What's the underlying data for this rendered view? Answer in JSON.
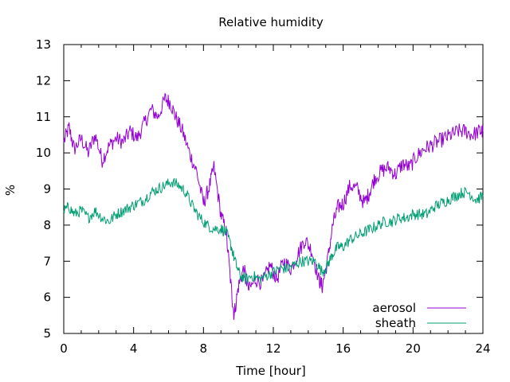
{
  "chart_data": {
    "type": "line",
    "title": "Relative humidity",
    "xlabel": "Time [hour]",
    "ylabel": "%",
    "xlim": [
      0,
      24
    ],
    "ylim": [
      5,
      13
    ],
    "xticks": [
      "0",
      "4",
      "8",
      "12",
      "16",
      "20",
      "24"
    ],
    "yticks": [
      "5",
      "6",
      "7",
      "8",
      "9",
      "10",
      "11",
      "12",
      "13"
    ],
    "grid": false,
    "legend_position": "bottom-right",
    "series": [
      {
        "name": "aerosol",
        "color": "#9400d3",
        "points": [
          [
            0,
            10.3
          ],
          [
            0.3,
            10.7
          ],
          [
            0.6,
            10.1
          ],
          [
            1,
            10.4
          ],
          [
            1.4,
            10.0
          ],
          [
            1.8,
            10.5
          ],
          [
            2.2,
            9.8
          ],
          [
            2.6,
            10.2
          ],
          [
            3,
            10.4
          ],
          [
            3.4,
            10.3
          ],
          [
            3.8,
            10.6
          ],
          [
            4.2,
            10.4
          ],
          [
            4.6,
            10.8
          ],
          [
            5,
            11.2
          ],
          [
            5.4,
            11.0
          ],
          [
            5.8,
            11.5
          ],
          [
            6.1,
            11.4
          ],
          [
            6.4,
            11.0
          ],
          [
            6.8,
            10.6
          ],
          [
            7.2,
            10.0
          ],
          [
            7.6,
            9.5
          ],
          [
            8,
            8.6
          ],
          [
            8.3,
            9.0
          ],
          [
            8.6,
            9.6
          ],
          [
            9,
            8.3
          ],
          [
            9.3,
            7.8
          ],
          [
            9.6,
            6.2
          ],
          [
            9.75,
            5.5
          ],
          [
            10,
            6.3
          ],
          [
            10.3,
            6.8
          ],
          [
            10.6,
            6.2
          ],
          [
            11,
            6.5
          ],
          [
            11.4,
            6.4
          ],
          [
            11.8,
            6.9
          ],
          [
            12.2,
            6.5
          ],
          [
            12.6,
            7.0
          ],
          [
            13,
            6.8
          ],
          [
            13.4,
            7.2
          ],
          [
            13.8,
            7.6
          ],
          [
            14.2,
            7.3
          ],
          [
            14.6,
            6.5
          ],
          [
            14.8,
            6.3
          ],
          [
            15.1,
            7.0
          ],
          [
            15.4,
            8.0
          ],
          [
            15.7,
            8.5
          ],
          [
            16,
            8.6
          ],
          [
            16.4,
            9.1
          ],
          [
            16.8,
            9.0
          ],
          [
            17.2,
            8.6
          ],
          [
            17.5,
            8.9
          ],
          [
            17.8,
            9.3
          ],
          [
            18.2,
            9.5
          ],
          [
            18.6,
            9.6
          ],
          [
            19,
            9.4
          ],
          [
            19.4,
            9.7
          ],
          [
            19.8,
            9.6
          ],
          [
            20.2,
            9.9
          ],
          [
            20.6,
            10.1
          ],
          [
            21,
            10.2
          ],
          [
            21.4,
            10.3
          ],
          [
            21.8,
            10.4
          ],
          [
            22.2,
            10.5
          ],
          [
            22.6,
            10.6
          ],
          [
            23,
            10.6
          ],
          [
            23.4,
            10.5
          ],
          [
            23.8,
            10.6
          ],
          [
            24,
            10.6
          ]
        ]
      },
      {
        "name": "sheath",
        "color": "#009e73",
        "points": [
          [
            0,
            8.4
          ],
          [
            0.3,
            8.5
          ],
          [
            0.6,
            8.3
          ],
          [
            1,
            8.4
          ],
          [
            1.4,
            8.2
          ],
          [
            1.8,
            8.4
          ],
          [
            2.2,
            8.2
          ],
          [
            2.6,
            8.1
          ],
          [
            3,
            8.3
          ],
          [
            3.4,
            8.4
          ],
          [
            3.8,
            8.5
          ],
          [
            4.2,
            8.6
          ],
          [
            4.6,
            8.7
          ],
          [
            5,
            8.9
          ],
          [
            5.4,
            9.0
          ],
          [
            5.8,
            9.1
          ],
          [
            6.2,
            9.2
          ],
          [
            6.6,
            9.1
          ],
          [
            7,
            8.9
          ],
          [
            7.4,
            8.5
          ],
          [
            7.8,
            8.2
          ],
          [
            8.2,
            8.0
          ],
          [
            8.6,
            7.9
          ],
          [
            9,
            7.9
          ],
          [
            9.3,
            7.8
          ],
          [
            9.6,
            7.4
          ],
          [
            9.8,
            7.0
          ],
          [
            10.1,
            6.6
          ],
          [
            10.4,
            6.5
          ],
          [
            10.8,
            6.6
          ],
          [
            11.2,
            6.5
          ],
          [
            11.6,
            6.6
          ],
          [
            12,
            6.7
          ],
          [
            12.4,
            6.8
          ],
          [
            12.8,
            6.8
          ],
          [
            13.2,
            6.9
          ],
          [
            13.6,
            7.0
          ],
          [
            14,
            7.0
          ],
          [
            14.4,
            7.0
          ],
          [
            14.8,
            6.7
          ],
          [
            15.1,
            6.9
          ],
          [
            15.4,
            7.2
          ],
          [
            15.7,
            7.4
          ],
          [
            16,
            7.4
          ],
          [
            16.4,
            7.6
          ],
          [
            16.8,
            7.7
          ],
          [
            17.2,
            7.8
          ],
          [
            17.6,
            7.9
          ],
          [
            18,
            8.0
          ],
          [
            18.4,
            8.1
          ],
          [
            18.8,
            8.1
          ],
          [
            19.2,
            8.2
          ],
          [
            19.6,
            8.2
          ],
          [
            20,
            8.3
          ],
          [
            20.4,
            8.3
          ],
          [
            20.8,
            8.3
          ],
          [
            21.2,
            8.5
          ],
          [
            21.6,
            8.6
          ],
          [
            22,
            8.7
          ],
          [
            22.4,
            8.8
          ],
          [
            22.8,
            8.9
          ],
          [
            23.2,
            8.9
          ],
          [
            23.6,
            8.7
          ],
          [
            24,
            8.8
          ]
        ]
      }
    ]
  }
}
